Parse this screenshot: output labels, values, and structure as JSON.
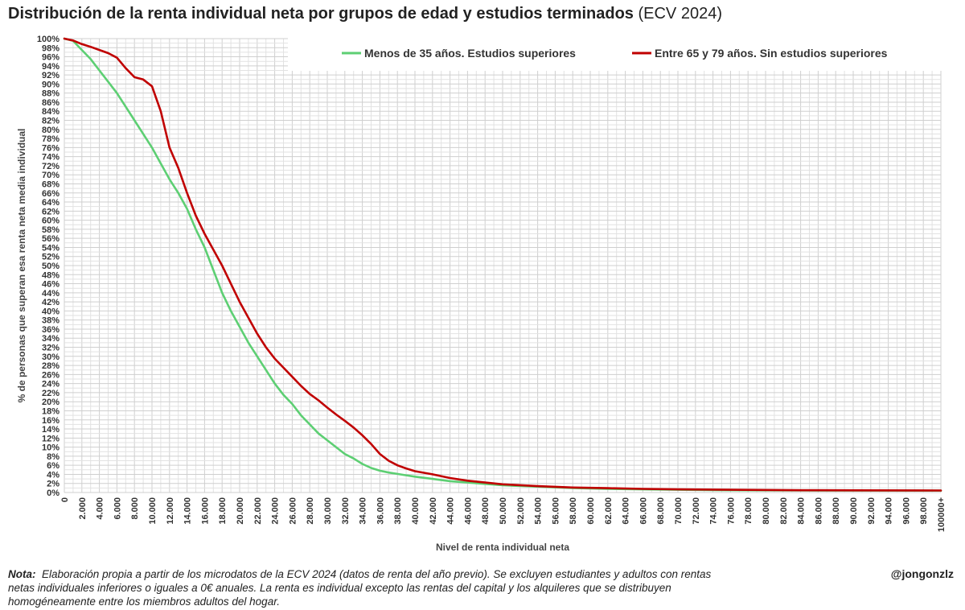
{
  "title": "Distribución de la renta individual neta por grupos de edad y estudios terminados",
  "title_suffix": "(ECV 2024)",
  "note_label": "Nota:",
  "note_text": "Elaboración propia a partir de los microdatos de la ECV 2024 (datos de renta del año previo). Se excluyen estudiantes y adultos con rentas netas individuales inferiores o iguales a 0€ anuales. La renta es individual excepto las rentas del capital y los alquileres que se distribuyen homogéneamente entre los miembros adultos del hogar.",
  "credit": "@jongonzlz",
  "chart_data": {
    "type": "line",
    "xlabel": "Nivel de renta individual neta",
    "ylabel": "% de personas que superan esa renta neta media individual",
    "xlim": [
      0,
      100000
    ],
    "ylim": [
      0,
      100
    ],
    "grid": true,
    "legend_position": "top",
    "x_tick_labels": [
      "0",
      "2.000",
      "4.000",
      "6.000",
      "8.000",
      "10.000",
      "12.000",
      "14.000",
      "16.000",
      "18.000",
      "20.000",
      "22.000",
      "24.000",
      "26.000",
      "28.000",
      "30.000",
      "32.000",
      "34.000",
      "36.000",
      "38.000",
      "40.000",
      "42.000",
      "44.000",
      "46.000",
      "48.000",
      "50.000",
      "52.000",
      "54.000",
      "56.000",
      "58.000",
      "60.000",
      "62.000",
      "64.000",
      "66.000",
      "68.000",
      "70.000",
      "72.000",
      "74.000",
      "76.000",
      "78.000",
      "80.000",
      "82.000",
      "84.000",
      "86.000",
      "88.000",
      "90.000",
      "92.000",
      "94.000",
      "96.000",
      "98.000",
      "100000+"
    ],
    "y_tick_labels": [
      "0%",
      "2%",
      "4%",
      "6%",
      "8%",
      "10%",
      "12%",
      "14%",
      "16%",
      "18%",
      "20%",
      "22%",
      "24%",
      "26%",
      "28%",
      "30%",
      "32%",
      "34%",
      "36%",
      "38%",
      "40%",
      "42%",
      "44%",
      "46%",
      "48%",
      "50%",
      "52%",
      "54%",
      "56%",
      "58%",
      "60%",
      "62%",
      "64%",
      "66%",
      "68%",
      "70%",
      "72%",
      "74%",
      "76%",
      "78%",
      "80%",
      "82%",
      "84%",
      "86%",
      "88%",
      "90%",
      "92%",
      "94%",
      "96%",
      "98%",
      "100%"
    ],
    "series": [
      {
        "name": "Menos de 35 años. Estudios superiores",
        "color": "#5dcf73",
        "points": [
          [
            0,
            100
          ],
          [
            1000,
            99.5
          ],
          [
            2000,
            97.5
          ],
          [
            3000,
            95.5
          ],
          [
            4000,
            93
          ],
          [
            5000,
            90.5
          ],
          [
            6000,
            88
          ],
          [
            7000,
            85
          ],
          [
            8000,
            82
          ],
          [
            9000,
            79
          ],
          [
            10000,
            76
          ],
          [
            11000,
            72.5
          ],
          [
            12000,
            69
          ],
          [
            13000,
            66
          ],
          [
            14000,
            62.5
          ],
          [
            15000,
            58
          ],
          [
            16000,
            54
          ],
          [
            17000,
            49
          ],
          [
            18000,
            44
          ],
          [
            19000,
            40
          ],
          [
            20000,
            36.5
          ],
          [
            21000,
            33
          ],
          [
            22000,
            30
          ],
          [
            23000,
            27
          ],
          [
            24000,
            24
          ],
          [
            25000,
            21.5
          ],
          [
            26000,
            19.5
          ],
          [
            27000,
            17
          ],
          [
            28000,
            15
          ],
          [
            29000,
            13
          ],
          [
            30000,
            11.5
          ],
          [
            31000,
            10
          ],
          [
            32000,
            8.5
          ],
          [
            33000,
            7.5
          ],
          [
            34000,
            6.3
          ],
          [
            35000,
            5.4
          ],
          [
            36000,
            4.8
          ],
          [
            37000,
            4.4
          ],
          [
            38000,
            4.1
          ],
          [
            39000,
            3.8
          ],
          [
            40000,
            3.5
          ],
          [
            42000,
            3
          ],
          [
            44000,
            2.5
          ],
          [
            46000,
            2.2
          ],
          [
            48000,
            1.9
          ],
          [
            50000,
            1.6
          ],
          [
            54000,
            1.3
          ],
          [
            58000,
            1.0
          ],
          [
            62000,
            0.8
          ],
          [
            66000,
            0.7
          ],
          [
            70000,
            0.6
          ],
          [
            76000,
            0.5
          ],
          [
            84000,
            0.45
          ],
          [
            90000,
            0.42
          ],
          [
            100000,
            0.4
          ]
        ]
      },
      {
        "name": "Entre 65 y 79 años. Sin estudios superiores",
        "color": "#c00000",
        "points": [
          [
            0,
            100
          ],
          [
            1000,
            99.6
          ],
          [
            2000,
            98.8
          ],
          [
            3000,
            98.2
          ],
          [
            4000,
            97.5
          ],
          [
            5000,
            96.8
          ],
          [
            6000,
            95.8
          ],
          [
            7000,
            93.5
          ],
          [
            8000,
            91.5
          ],
          [
            9000,
            91
          ],
          [
            10000,
            89.5
          ],
          [
            11000,
            84
          ],
          [
            12000,
            76
          ],
          [
            13000,
            71.5
          ],
          [
            14000,
            66
          ],
          [
            15000,
            61
          ],
          [
            16000,
            57
          ],
          [
            17000,
            53.5
          ],
          [
            18000,
            50
          ],
          [
            19000,
            46
          ],
          [
            20000,
            42
          ],
          [
            21000,
            38.5
          ],
          [
            22000,
            35
          ],
          [
            23000,
            32
          ],
          [
            24000,
            29.5
          ],
          [
            25000,
            27.5
          ],
          [
            26000,
            25.5
          ],
          [
            27000,
            23.5
          ],
          [
            28000,
            21.7
          ],
          [
            29000,
            20.3
          ],
          [
            30000,
            18.7
          ],
          [
            31000,
            17.2
          ],
          [
            32000,
            15.8
          ],
          [
            33000,
            14.3
          ],
          [
            34000,
            12.6
          ],
          [
            35000,
            10.7
          ],
          [
            36000,
            8.5
          ],
          [
            37000,
            7
          ],
          [
            38000,
            6
          ],
          [
            39000,
            5.3
          ],
          [
            40000,
            4.7
          ],
          [
            42000,
            4
          ],
          [
            44000,
            3.2
          ],
          [
            46000,
            2.6
          ],
          [
            48000,
            2.2
          ],
          [
            50000,
            1.8
          ],
          [
            54000,
            1.4
          ],
          [
            58000,
            1.1
          ],
          [
            62000,
            0.95
          ],
          [
            66000,
            0.8
          ],
          [
            70000,
            0.7
          ],
          [
            76000,
            0.6
          ],
          [
            84000,
            0.5
          ],
          [
            90000,
            0.47
          ],
          [
            100000,
            0.45
          ]
        ]
      }
    ]
  }
}
